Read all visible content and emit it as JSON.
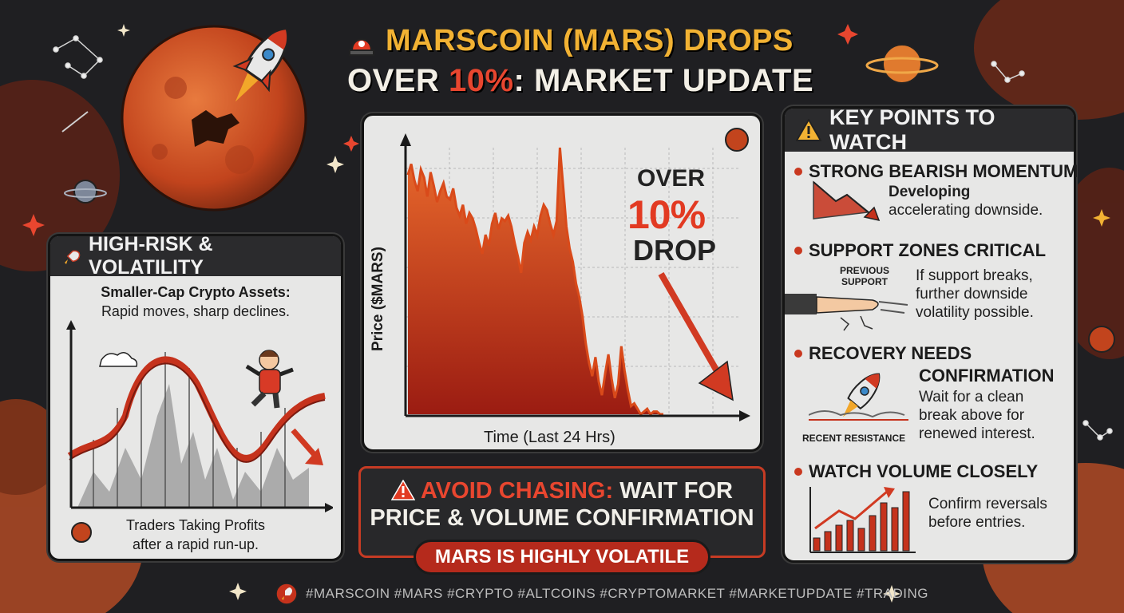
{
  "title": {
    "line1": "MARSCOIN (MARS) DROPS",
    "line2_prefix": "OVER ",
    "line2_pct": "10%",
    "line2_suffix": ": MARKET UPDATE"
  },
  "left_panel": {
    "heading": "HIGH-RISK & VOLATILITY",
    "subtitle_bold": "Smaller-Cap Crypto Assets:",
    "subtitle": "Rapid moves, sharp declines.",
    "footer_line1": "Traders Taking Profits",
    "footer_line2": "after a rapid run-up."
  },
  "chart": {
    "xlabel": "Time (Last 24 Hrs)",
    "ylabel": "Price ($MARS)",
    "callout_over": "OVER",
    "callout_pct": "10%",
    "callout_drop": "DROP"
  },
  "chart_data": {
    "type": "area",
    "x": [
      0,
      1,
      2,
      3,
      4,
      5,
      6,
      7,
      8,
      9,
      10,
      11,
      12,
      13,
      14,
      15,
      16,
      17,
      18,
      19,
      20,
      21,
      22,
      23,
      24,
      25,
      26,
      27,
      28,
      29,
      30,
      31,
      32,
      33,
      34,
      35,
      36,
      37,
      38,
      39,
      40,
      41,
      42,
      43,
      44,
      45,
      46,
      47,
      48,
      49,
      50,
      51,
      52,
      53,
      54,
      55,
      56,
      57,
      58,
      59,
      60,
      61,
      62,
      63,
      64,
      65,
      66,
      67,
      68,
      69,
      70,
      71,
      72,
      73,
      74,
      75,
      76,
      77,
      78,
      79
    ],
    "values": [
      88,
      92,
      86,
      82,
      90,
      87,
      80,
      89,
      84,
      78,
      82,
      85,
      80,
      79,
      83,
      76,
      73,
      77,
      70,
      74,
      72,
      68,
      63,
      59,
      66,
      62,
      70,
      74,
      68,
      72,
      71,
      73,
      69,
      63,
      58,
      52,
      63,
      67,
      64,
      69,
      66,
      73,
      77,
      75,
      70,
      66,
      71,
      98,
      84,
      69,
      61,
      56,
      48,
      43,
      36,
      26,
      19,
      14,
      21,
      12,
      7,
      15,
      22,
      13,
      6,
      11,
      25,
      16,
      9,
      3,
      4,
      2,
      0,
      1,
      2,
      0,
      1,
      1,
      0,
      0
    ],
    "xlabel": "Time (Last 24 Hrs)",
    "ylabel": "Price ($MARS)"
  },
  "warning": {
    "line1_red": "AVOID CHASING:",
    "line1_rest": " WAIT FOR",
    "line2": "PRICE & VOLUME CONFIRMATION",
    "pill": "MARS IS HIGHLY VOLATILE"
  },
  "right_panel": {
    "heading": "KEY POINTS TO WATCH",
    "points": [
      {
        "title": "STRONG BEARISH MOMENTUM",
        "text_bold": "Developing",
        "text": "accelerating downside."
      },
      {
        "title": "SUPPORT ZONES CRITICAL",
        "label_line1": "PREVIOUS",
        "label_line2": "SUPPORT",
        "text1": "If support breaks,",
        "text2": "further downside",
        "text3": "volatility possible."
      },
      {
        "title": "RECOVERY NEEDS",
        "title2": "CONFIRMATION",
        "label": "RECENT RESISTANCE",
        "text1": "Wait for a clean",
        "text2": "break above for",
        "text3": "renewed interest."
      },
      {
        "title": "WATCH VOLUME CLOSELY",
        "text1": "Confirm reversals",
        "text2": "before entries."
      }
    ]
  },
  "hashtags": "#MARSCOIN #MARS #CRYPTO #ALTCOINS #CRYPTOMARKET #MARKETUPDATE #TRADING",
  "colors": {
    "accent_red": "#e23a22",
    "title_gold": "#f2b233",
    "background": "#1f1f22",
    "panel": "#e7e7e6"
  }
}
